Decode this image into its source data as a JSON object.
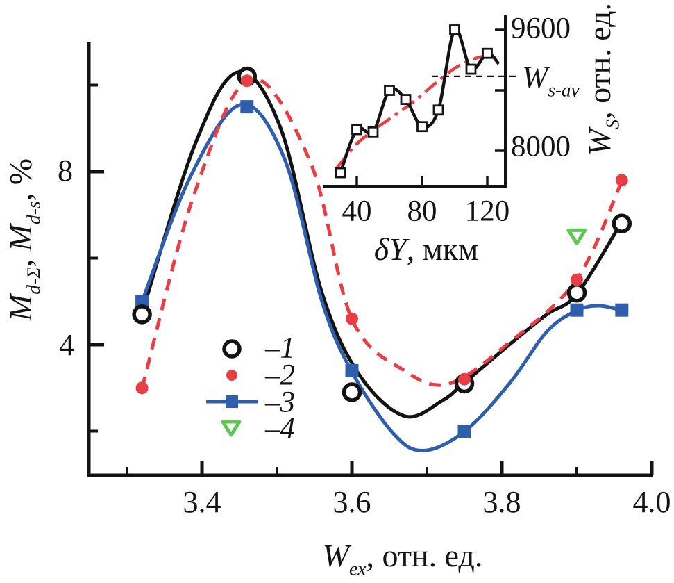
{
  "colors": {
    "black": "#131313",
    "red": "#e83e46",
    "blue": "#2f5fac",
    "green": "#5ec653",
    "background": "#ffffff"
  },
  "chart_data": {
    "type": "line",
    "main_plot": {
      "xlabel_var": "W",
      "xlabel_sub": "ex",
      "xlabel_rest": ", отн. ед.",
      "ylabel_var1": "M",
      "ylabel_sub1": "d-Σ",
      "ylabel_sep": ", ",
      "ylabel_var2": "M",
      "ylabel_sub2": "d-s",
      "ylabel_rest": ", %",
      "x_range": [
        3.25,
        4.01
      ],
      "y_range": [
        0.9,
        11.0
      ],
      "x_major_ticks": [
        3.4,
        3.6,
        3.8,
        4.0
      ],
      "x_tick_labels": [
        "3.4",
        "3.6",
        "3.8",
        "4.0"
      ],
      "x_minor_ticks": [
        3.3,
        3.5,
        3.7,
        3.9
      ],
      "y_major_ticks": [
        4,
        8
      ],
      "y_tick_labels": [
        "4",
        "8"
      ],
      "y_minor_ticks": [
        2,
        6,
        10
      ],
      "grid": false,
      "legend_position": "center-left",
      "series": [
        {
          "id": 1,
          "legend_label": "–1",
          "marker": "open-circle",
          "color": "#131313",
          "line_style": "solid",
          "points": [
            [
              3.32,
              4.7
            ],
            [
              3.46,
              10.2
            ],
            [
              3.6,
              2.9
            ],
            [
              3.75,
              3.1
            ],
            [
              3.9,
              5.2
            ],
            [
              3.96,
              6.8
            ]
          ],
          "curve": [
            [
              3.32,
              4.72
            ],
            [
              3.39,
              8.6
            ],
            [
              3.448,
              10.3
            ],
            [
              3.505,
              9.0
            ],
            [
              3.56,
              5.2
            ],
            [
              3.61,
              3.3
            ],
            [
              3.67,
              2.35
            ],
            [
              3.72,
              2.7
            ],
            [
              3.75,
              3.12
            ],
            [
              3.81,
              4.0
            ],
            [
              3.86,
              4.7
            ],
            [
              3.9,
              5.17
            ],
            [
              3.96,
              6.84
            ]
          ]
        },
        {
          "id": 2,
          "legend_label": "–2",
          "marker": "dot",
          "color": "#e83e46",
          "line_style": "dashed",
          "points": [
            [
              3.32,
              3.0
            ],
            [
              3.46,
              10.1
            ],
            [
              3.6,
              4.6
            ],
            [
              3.75,
              3.2
            ],
            [
              3.9,
              5.5
            ],
            [
              3.96,
              7.8
            ]
          ],
          "curve": [
            [
              3.32,
              2.99
            ],
            [
              3.39,
              7.5
            ],
            [
              3.465,
              10.15
            ],
            [
              3.545,
              8.2
            ],
            [
              3.6,
              4.59
            ],
            [
              3.67,
              3.4
            ],
            [
              3.73,
              3.1
            ],
            [
              3.81,
              4.05
            ],
            [
              3.9,
              5.51
            ],
            [
              3.96,
              7.78
            ]
          ]
        },
        {
          "id": 3,
          "legend_label": "–3",
          "marker": "square",
          "color": "#2f5fac",
          "line_style": "solid",
          "points": [
            [
              3.32,
              5.0
            ],
            [
              3.46,
              9.5
            ],
            [
              3.6,
              3.4
            ],
            [
              3.75,
              2.0
            ],
            [
              3.9,
              4.8
            ],
            [
              3.96,
              4.8
            ]
          ],
          "curve": [
            [
              3.32,
              5.0
            ],
            [
              3.385,
              7.9
            ],
            [
              3.452,
              9.55
            ],
            [
              3.51,
              8.3
            ],
            [
              3.56,
              5.0
            ],
            [
              3.6,
              3.37
            ],
            [
              3.655,
              1.95
            ],
            [
              3.695,
              1.55
            ],
            [
              3.75,
              1.99
            ],
            [
              3.81,
              3.1
            ],
            [
              3.86,
              4.3
            ],
            [
              3.9,
              4.79
            ],
            [
              3.93,
              4.9
            ],
            [
              3.96,
              4.79
            ]
          ]
        },
        {
          "id": 4,
          "legend_label": "–4",
          "marker": "open-triangle",
          "color": "#5ec653",
          "line_style": "none",
          "points": [
            [
              3.9,
              6.5
            ]
          ],
          "curve": []
        }
      ]
    },
    "inset_plot": {
      "xlabel_var": "δY",
      "xlabel_rest": ", мкм",
      "ylabel_var": "W",
      "ylabel_sub": "S",
      "ylabel_rest": ", отн. ед.",
      "x_major_ticks": [
        40,
        80,
        120
      ],
      "x_tick_labels": [
        "40",
        "80",
        "120"
      ],
      "y_major_ticks": [
        8000,
        8800,
        9600
      ],
      "y_tick_labels": [
        "8000",
        "9600"
      ],
      "avg_label_var": "W",
      "avg_label_sub": "s-av",
      "avg_value": 8985,
      "series_measured": {
        "name": "measured",
        "marker": "open-square",
        "color": "#131313",
        "line_style": "solid",
        "points": [
          [
            30,
            7710
          ],
          [
            40,
            8280
          ],
          [
            50,
            8250
          ],
          [
            60,
            8800
          ],
          [
            70,
            8680
          ],
          [
            80,
            8320
          ],
          [
            90,
            8540
          ],
          [
            100,
            9600
          ],
          [
            110,
            9080
          ],
          [
            120,
            9290
          ]
        ],
        "curve": [
          [
            30,
            7710
          ],
          [
            40,
            8280
          ],
          [
            50,
            8250
          ],
          [
            60,
            8800
          ],
          [
            70,
            8680
          ],
          [
            80,
            8320
          ],
          [
            90,
            8540
          ],
          [
            100,
            9600
          ],
          [
            110,
            9080
          ],
          [
            120,
            9290
          ],
          [
            127,
            9150
          ]
        ]
      },
      "series_trend": {
        "name": "trend",
        "marker": "none",
        "color": "#e83e46",
        "line_style": "dash-dot",
        "curve": [
          [
            28,
            7780
          ],
          [
            40,
            8090
          ],
          [
            52,
            8300
          ],
          [
            64,
            8480
          ],
          [
            76,
            8670
          ],
          [
            88,
            8890
          ],
          [
            100,
            9090
          ],
          [
            110,
            9200
          ],
          [
            118,
            9250
          ],
          [
            126,
            9230
          ]
        ]
      }
    }
  }
}
